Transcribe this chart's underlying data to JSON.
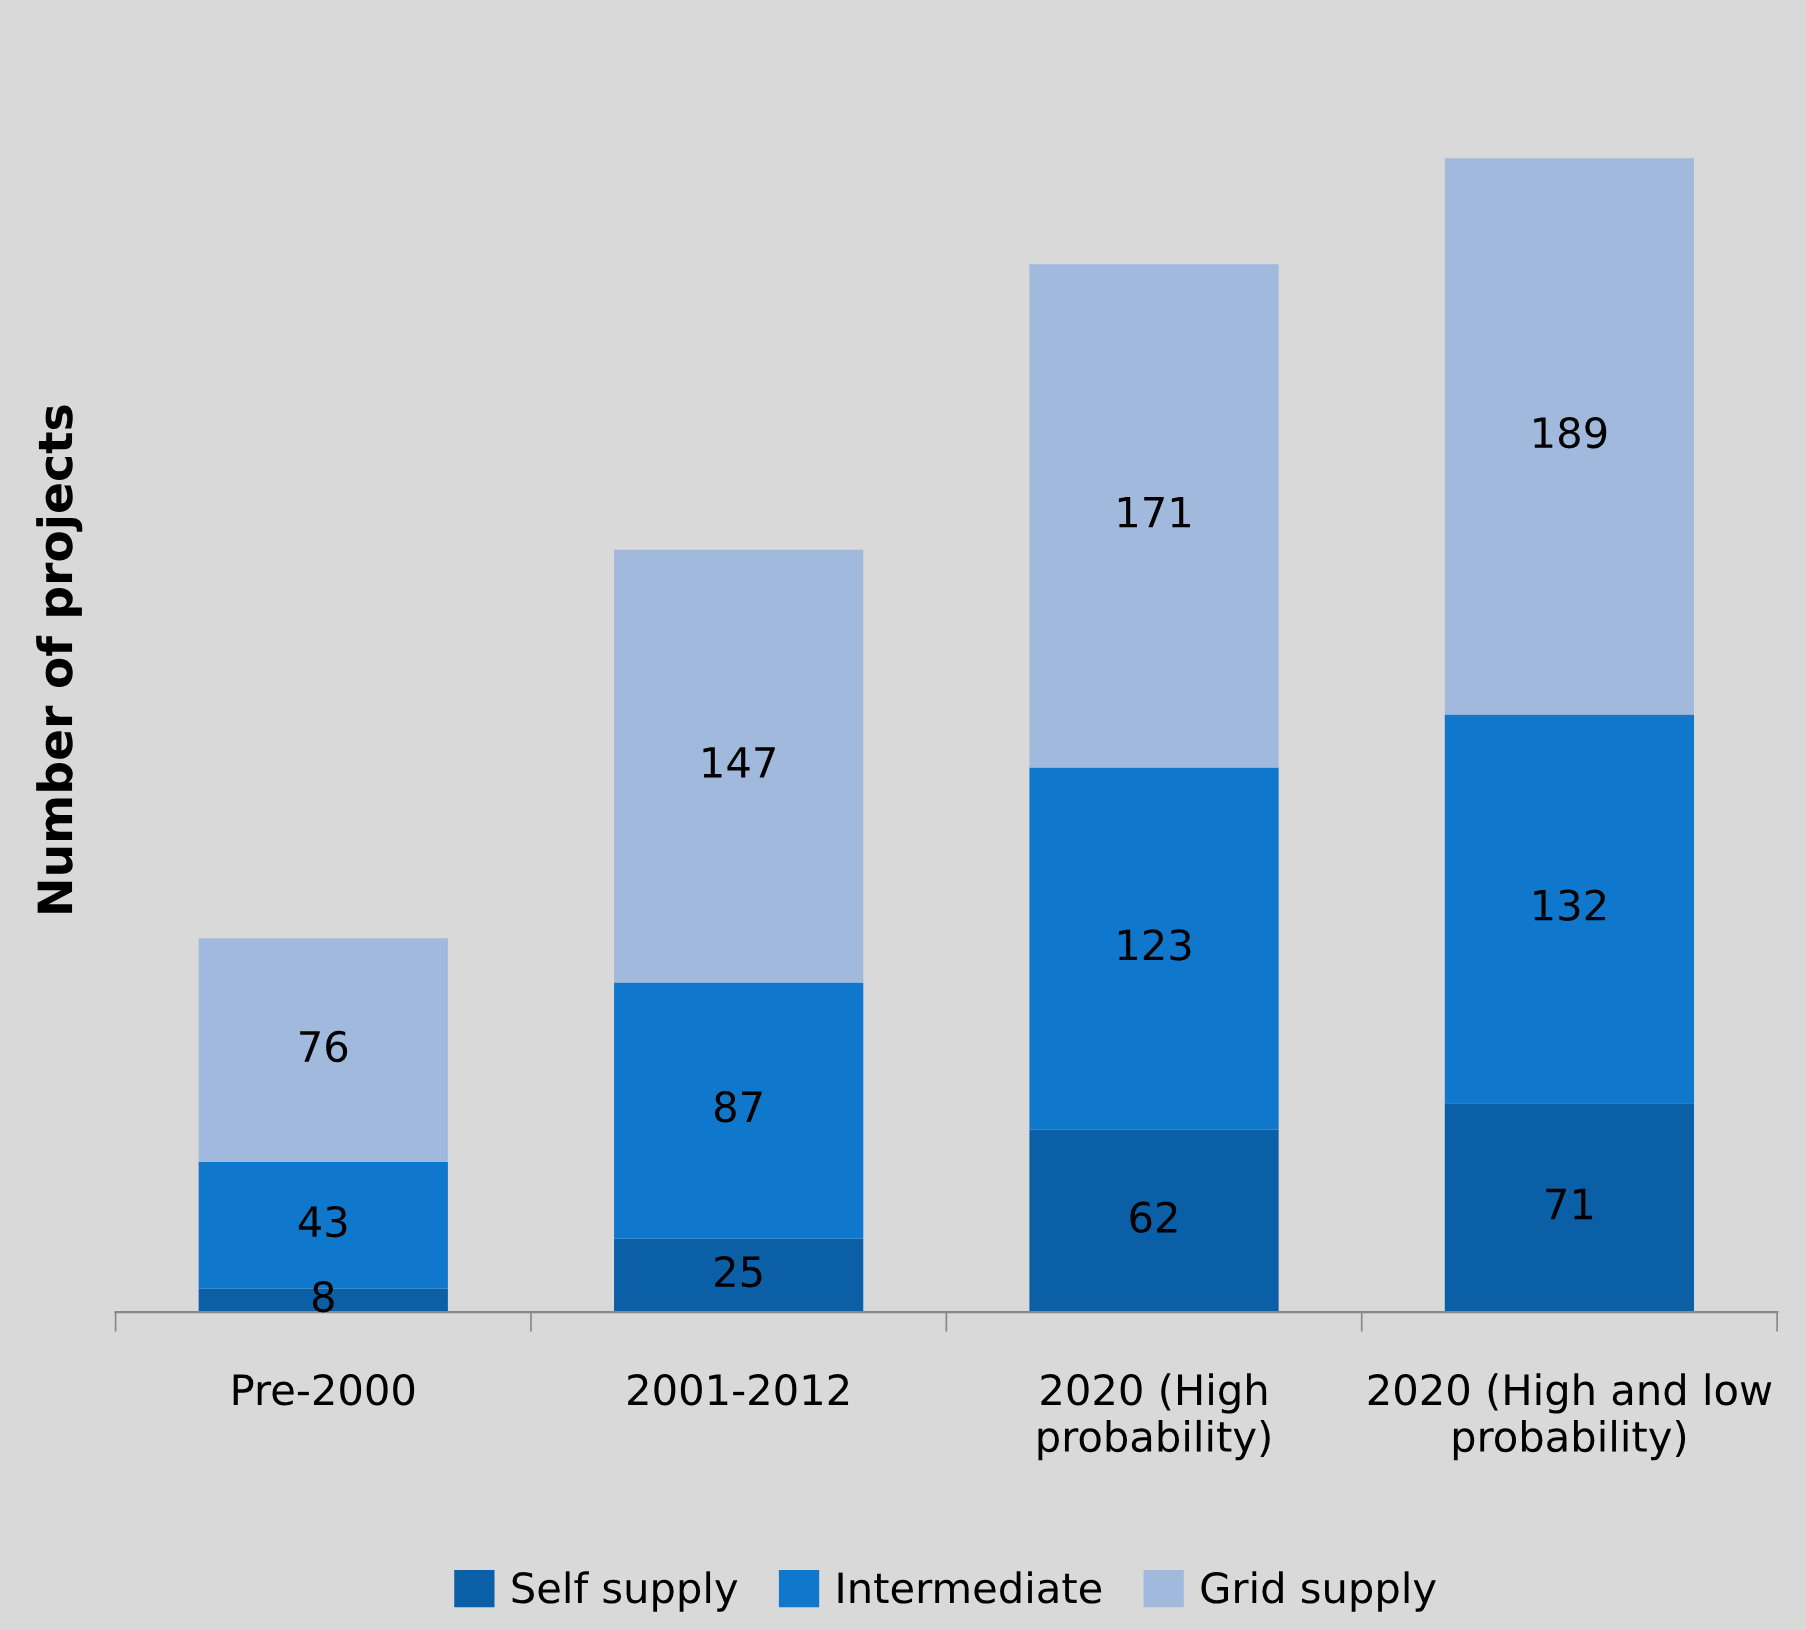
{
  "chart_data": {
    "type": "bar",
    "stacked": true,
    "ylabel": "Number of projects",
    "categories": [
      "Pre-2000",
      "2001-2012",
      "2020 (High\nprobability)",
      "2020 (High and low\nprobability)"
    ],
    "series": [
      {
        "name": "Self supply",
        "color": "#0a5fa6",
        "values": [
          8,
          25,
          62,
          71
        ]
      },
      {
        "name": "Intermediate",
        "color": "#0f78cc",
        "values": [
          43,
          87,
          123,
          132
        ]
      },
      {
        "name": "Grid supply",
        "color": "#a2b9de",
        "values": [
          76,
          147,
          171,
          189
        ]
      }
    ],
    "data_labels": true,
    "legend": "bottom",
    "grid": false
  }
}
